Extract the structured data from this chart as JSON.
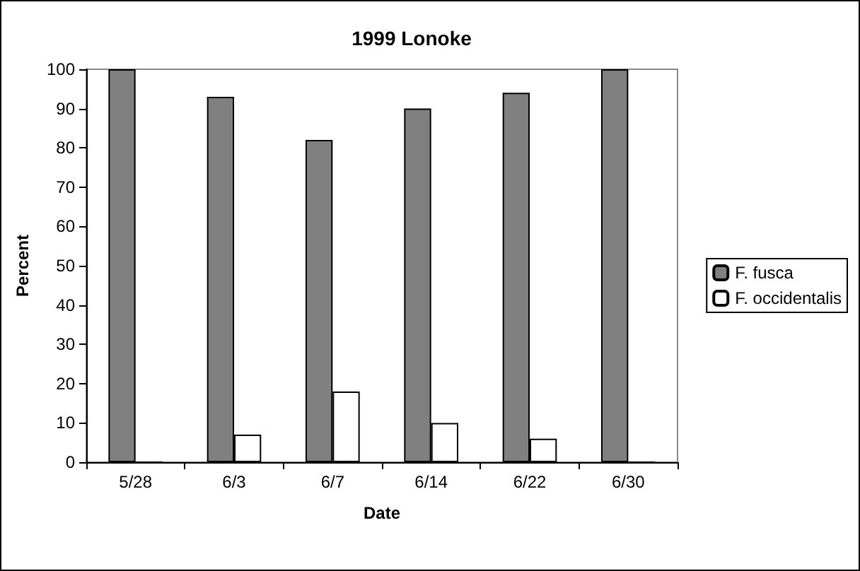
{
  "chart_data": {
    "type": "bar",
    "title": "1999 Lonoke",
    "xlabel": "Date",
    "ylabel": "Percent",
    "categories": [
      "5/28",
      "6/3",
      "6/7",
      "6/14",
      "6/22",
      "6/30"
    ],
    "series": [
      {
        "name": "F. fusca",
        "color": "#808080",
        "values": [
          100,
          93,
          82,
          90,
          94,
          100
        ]
      },
      {
        "name": "F. occidentalis",
        "color": "#ffffff",
        "values": [
          0,
          7,
          18,
          10,
          6,
          0
        ]
      }
    ],
    "ylim": [
      0,
      100
    ],
    "yticks": [
      0,
      10,
      20,
      30,
      40,
      50,
      60,
      70,
      80,
      90,
      100
    ],
    "grid": false,
    "legend": "right"
  }
}
